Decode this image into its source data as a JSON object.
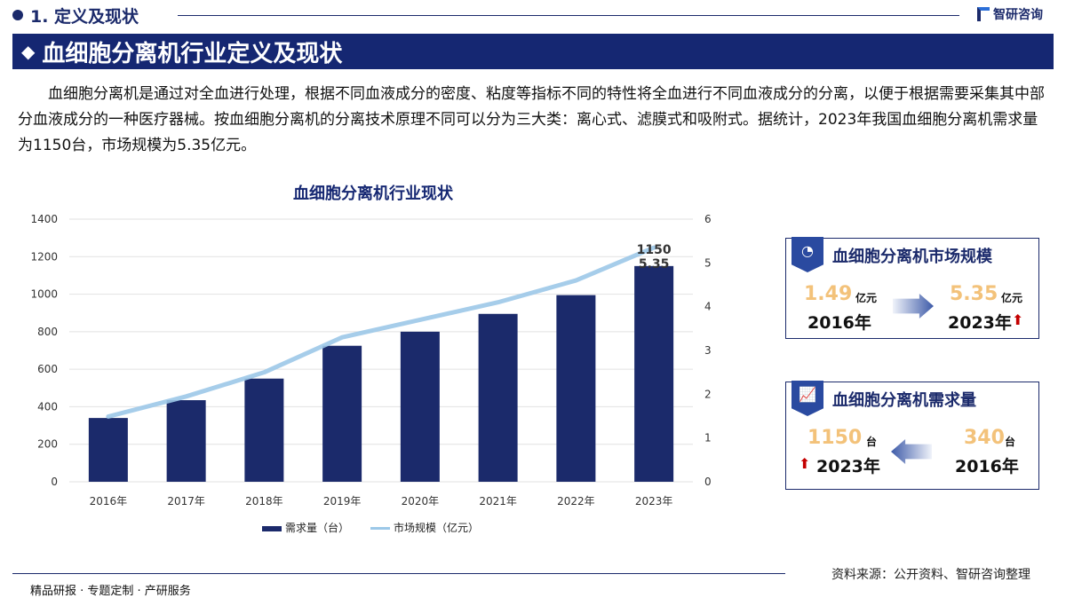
{
  "header": {
    "section": "1. 定义及现状",
    "logo": "智研咨询",
    "banner": "血细胞分离机行业定义及现状"
  },
  "intro": "血细胞分离机是通过对全血进行处理，根据不同血液成分的密度、粘度等指标不同的特性将全血进行不同血液成分的分离，以便于根据需要采集其中部分血液成分的一种医疗器械。按血细胞分离机的分离技术原理不同可以分为三大类：离心式、滤膜式和吸附式。据统计，2023年我国血细胞分离机需求量为1150台，市场规模为5.35亿元。",
  "chart_data": {
    "type": "bar",
    "title": "血细胞分离机行业现状",
    "categories": [
      "2016年",
      "2017年",
      "2018年",
      "2019年",
      "2020年",
      "2021年",
      "2022年",
      "2023年"
    ],
    "series": [
      {
        "name": "需求量（台）",
        "type": "bar",
        "axis": "left",
        "values": [
          340,
          435,
          550,
          725,
          800,
          895,
          995,
          1150
        ]
      },
      {
        "name": "市场规模（亿元）",
        "type": "line",
        "axis": "right",
        "values": [
          1.49,
          1.95,
          2.5,
          3.3,
          3.7,
          4.1,
          4.6,
          5.35
        ]
      }
    ],
    "left_axis": {
      "ylim": [
        0,
        1400
      ],
      "ticks": [
        0,
        200,
        400,
        600,
        800,
        1000,
        1200,
        1400
      ]
    },
    "right_axis": {
      "ylim": [
        0,
        6
      ],
      "ticks": [
        0,
        1,
        2,
        3,
        4,
        5,
        6
      ]
    },
    "data_labels": {
      "bar_last": "1150",
      "line_last": "5.35"
    },
    "legend_position": "bottom",
    "grid": true,
    "colors": {
      "bar": "#1b2a6b",
      "line": "#9cc8e8"
    }
  },
  "cards": {
    "market": {
      "title": "血细胞分离机市场规模",
      "from_value": "1.49",
      "from_unit": "亿元",
      "from_year": "2016年",
      "to_value": "5.35",
      "to_unit": "亿元",
      "to_year": "2023年"
    },
    "demand": {
      "title": "血细胞分离机需求量",
      "left_value": "1150",
      "left_unit": "台",
      "left_year": "2023年",
      "right_value": "340",
      "right_unit": "台",
      "right_year": "2016年"
    }
  },
  "source": "资料来源：公开资料、智研咨询整理",
  "footer": "精品研报 · 专题定制 · 产研服务"
}
